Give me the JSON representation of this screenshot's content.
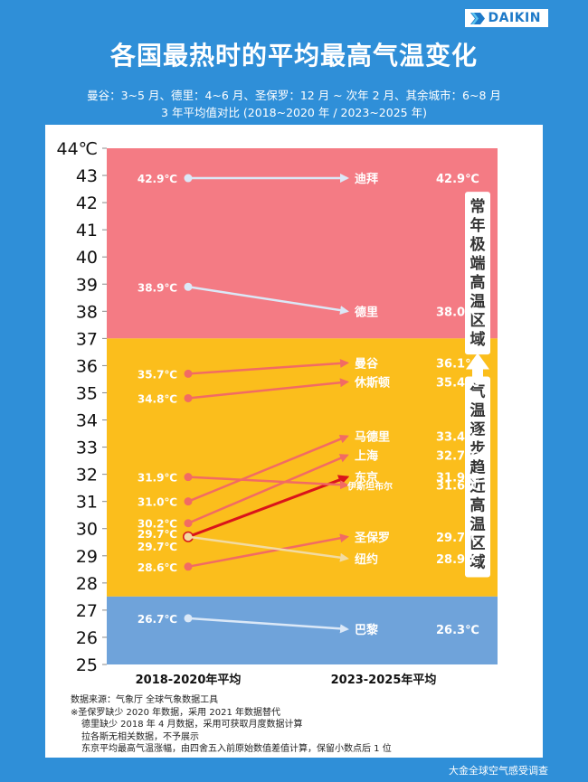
{
  "brand": {
    "logo_text": "DAIKIN"
  },
  "title": "各国最热时的平均最高气温变化",
  "subtitle_line1": "曼谷：3~5 月、德里：4~6 月、圣保罗：12 月 ~ 次年 2 月、其余城市：6~8 月",
  "subtitle_line2": "3 年平均值对比 (2018~2020 年 / 2023~2025 年)",
  "chart_data": {
    "type": "line",
    "ylim": [
      25,
      44
    ],
    "yticks": [
      25,
      26,
      27,
      28,
      29,
      30,
      31,
      32,
      33,
      34,
      35,
      36,
      37,
      38,
      39,
      40,
      41,
      42,
      43,
      44
    ],
    "y_unit": "℃",
    "categories": [
      "2018-2020年平均",
      "2023-2025年平均"
    ],
    "zones": [
      {
        "label": "常年极端高温区域",
        "from": 37,
        "to": 44,
        "color": "#f47b84"
      },
      {
        "label": "气温逐步趋近高温区域",
        "from": 27.5,
        "to": 37,
        "color": "#fbbe1c"
      },
      {
        "from": 25,
        "to": 27.5,
        "color": "#6fa3da"
      }
    ],
    "series": [
      {
        "name": "迪拜",
        "start": 42.9,
        "end": 42.9,
        "start_label": "42.9℃",
        "end_label": "42.9℃",
        "color": "#dbe8f7"
      },
      {
        "name": "德里",
        "start": 38.9,
        "end": 38.0,
        "start_label": "38.9℃",
        "end_label": "38.0℃",
        "color": "#dbe8f7"
      },
      {
        "name": "曼谷",
        "start": 35.7,
        "end": 36.1,
        "start_label": "35.7℃",
        "end_label": "36.1℃",
        "color": "#f26b63"
      },
      {
        "name": "休斯顿",
        "start": 34.8,
        "end": 35.4,
        "start_label": "34.8℃",
        "end_label": "35.4℃",
        "color": "#f26b63"
      },
      {
        "name": "马德里",
        "start": 31.0,
        "end": 33.4,
        "start_label": "31.0℃",
        "end_label": "33.4℃",
        "color": "#f26b63"
      },
      {
        "name": "上海",
        "start": 30.2,
        "end": 32.7,
        "start_label": "30.2℃",
        "end_label": "32.7℃",
        "color": "#f26b63"
      },
      {
        "name": "东京",
        "start": 29.7,
        "end": 31.9,
        "start_label": "29.7℃",
        "end_label": "31.9℃",
        "color": "#d9141b"
      },
      {
        "name": "伊斯坦布尔",
        "start": 31.9,
        "end": 31.6,
        "start_label": "31.9℃",
        "end_label": "31.6℃",
        "color": "#f26b63"
      },
      {
        "name": "圣保罗",
        "start": 28.6,
        "end": 29.7,
        "start_label": "28.6℃",
        "end_label": "29.7℃",
        "color": "#f26b63"
      },
      {
        "name": "纽约",
        "start": 29.7,
        "end": 28.9,
        "start_label": "29.7℃",
        "end_label": "28.9℃",
        "color": "#f2dba2"
      },
      {
        "name": "巴黎",
        "start": 26.7,
        "end": 26.3,
        "start_label": "26.7℃",
        "end_label": "26.3℃",
        "color": "#dbe8f7"
      }
    ]
  },
  "notes": {
    "source": "数据来源：气象厅 全球气象数据工具",
    "n1": "※圣保罗缺少 2020 年数据，采用 2021 年数据替代",
    "n2": "德里缺少 2018 年 4 月数据，采用可获取月度数据计算",
    "n3": "拉各斯无相关数据，不予展示",
    "n4": "东京平均最高气温涨幅，由四舍五入前原始数值差值计算，保留小数点后 1 位"
  },
  "footer": "大金全球空气感受调查"
}
